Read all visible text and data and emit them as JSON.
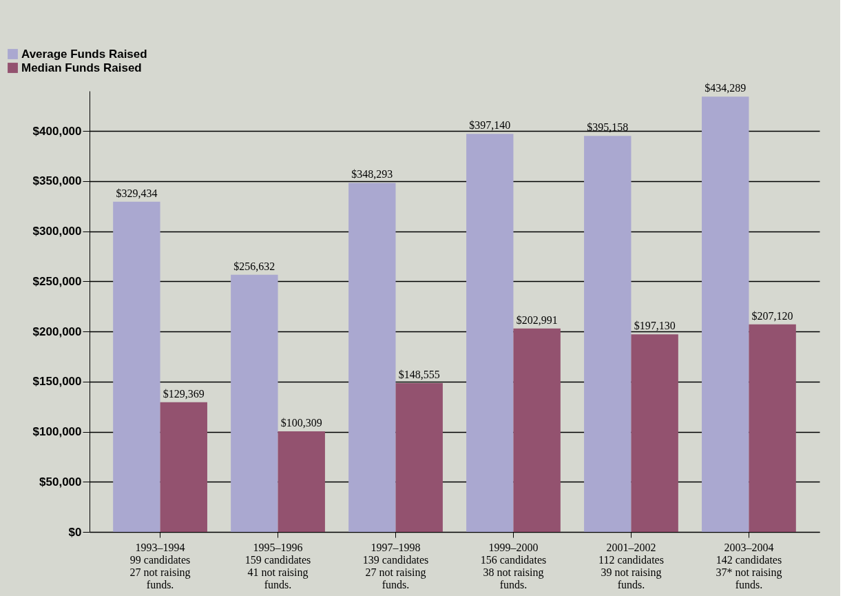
{
  "chart_data": {
    "type": "bar",
    "categories": [
      "1993–1994\n99 candidates\n27 not raising\nfunds.",
      "1995–1996\n159 candidates\n41 not raising\nfunds.",
      "1997–1998\n139 candidates\n27 not raising\nfunds.",
      "1999–2000\n156 candidates\n38 not raising\nfunds.",
      "2001–2002\n112 candidates\n39 not raising\nfunds.",
      "2003–2004\n142 candidates\n37* not raising\nfunds."
    ],
    "series": [
      {
        "name": "Average Funds Raised",
        "color": "#aaa8d0",
        "values": [
          329434,
          256632,
          348293,
          397140,
          395158,
          434289
        ],
        "value_labels": [
          "$329,434",
          "$256,632",
          "$348,293",
          "$397,140",
          "$395,158",
          "$434,289"
        ]
      },
      {
        "name": "Median Funds Raised",
        "color": "#93526f",
        "values": [
          129369,
          100309,
          148555,
          202991,
          197130,
          207120
        ],
        "value_labels": [
          "$129,369",
          "$100,309",
          "$148,555",
          "$202,991",
          "$197,130",
          "$207,120"
        ]
      }
    ],
    "ylim": [
      0,
      440000
    ],
    "yticks": [
      {
        "value": 0,
        "label": "$0"
      },
      {
        "value": 50000,
        "label": "$50,000"
      },
      {
        "value": 100000,
        "label": "$100,000"
      },
      {
        "value": 150000,
        "label": "$150,000"
      },
      {
        "value": 200000,
        "label": "$200,000"
      },
      {
        "value": 250000,
        "label": "$250,000"
      },
      {
        "value": 300000,
        "label": "$300,000"
      },
      {
        "value": 350000,
        "label": "$350,000"
      },
      {
        "value": 400000,
        "label": "$400,000"
      }
    ],
    "grid": "y",
    "legend": "top left"
  }
}
